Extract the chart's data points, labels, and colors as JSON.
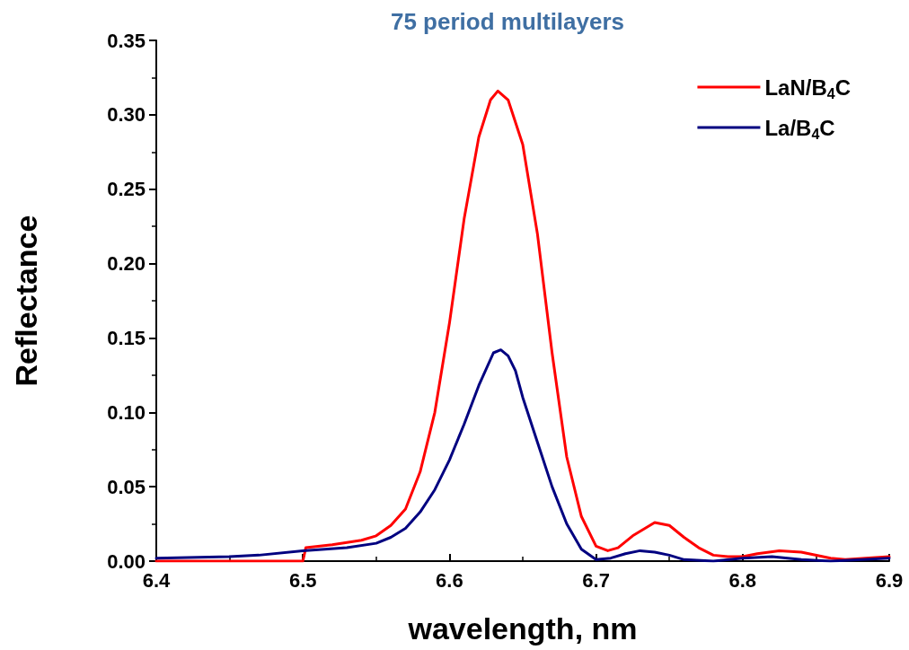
{
  "chart_data": {
    "type": "line",
    "title": "75 period multilayers",
    "xlabel": "wavelength, nm",
    "ylabel": "Reflectance",
    "xlim": [
      6.4,
      6.9
    ],
    "xticks": [
      6.4,
      6.5,
      6.6,
      6.7,
      6.8,
      6.9
    ],
    "ylim": [
      0,
      0.35
    ],
    "yticks": [
      {
        "value": 0,
        "label": "0.00"
      },
      {
        "value": 0.05,
        "label": "0.05"
      },
      {
        "value": 0.1,
        "label": "0.10"
      },
      {
        "value": 0.15,
        "label": "0.15"
      },
      {
        "value": 0.2,
        "label": "0.20"
      },
      {
        "value": 0.25,
        "label": "0.25"
      },
      {
        "value": 0.3,
        "label": "0.30"
      },
      {
        "value": 0.35,
        "label": "0.35"
      }
    ],
    "grid": false,
    "legend": "top right",
    "marker": "none",
    "line_style": "solid",
    "series": [
      {
        "name": "LaN/B$_{4}$C",
        "color": "#ff0000",
        "x": [
          6.4,
          6.45,
          6.5,
          6.502,
          6.52,
          6.54,
          6.55,
          6.56,
          6.57,
          6.58,
          6.59,
          6.6,
          6.61,
          6.62,
          6.628,
          6.633,
          6.64,
          6.65,
          6.66,
          6.67,
          6.68,
          6.69,
          6.7,
          6.708,
          6.715,
          6.725,
          6.74,
          6.75,
          6.76,
          6.77,
          6.78,
          6.79,
          6.8,
          6.81,
          6.825,
          6.84,
          6.86,
          6.87,
          6.9
        ],
        "values": [
          0,
          0,
          0,
          0.009,
          0.011,
          0.014,
          0.017,
          0.024,
          0.035,
          0.06,
          0.1,
          0.16,
          0.23,
          0.285,
          0.31,
          0.316,
          0.31,
          0.28,
          0.22,
          0.14,
          0.07,
          0.03,
          0.01,
          0.007,
          0.009,
          0.017,
          0.026,
          0.024,
          0.016,
          0.009,
          0.004,
          0.003,
          0.003,
          0.005,
          0.007,
          0.006,
          0.002,
          0.001,
          0.003
        ]
      },
      {
        "name": "La/B$_{4}$C",
        "color": "#000080",
        "x": [
          6.4,
          6.45,
          6.47,
          6.5,
          6.53,
          6.55,
          6.56,
          6.57,
          6.58,
          6.59,
          6.6,
          6.61,
          6.62,
          6.63,
          6.635,
          6.64,
          6.645,
          6.65,
          6.66,
          6.67,
          6.68,
          6.69,
          6.7,
          6.71,
          6.72,
          6.73,
          6.74,
          6.75,
          6.76,
          6.78,
          6.8,
          6.82,
          6.84,
          6.86,
          6.9
        ],
        "values": [
          0.002,
          0.003,
          0.004,
          0.007,
          0.009,
          0.012,
          0.016,
          0.022,
          0.033,
          0.048,
          0.068,
          0.092,
          0.118,
          0.14,
          0.142,
          0.138,
          0.128,
          0.11,
          0.08,
          0.05,
          0.025,
          0.008,
          0.001,
          0.002,
          0.005,
          0.007,
          0.006,
          0.004,
          0.001,
          0,
          0.002,
          0.003,
          0.001,
          0,
          0.002
        ]
      }
    ]
  }
}
